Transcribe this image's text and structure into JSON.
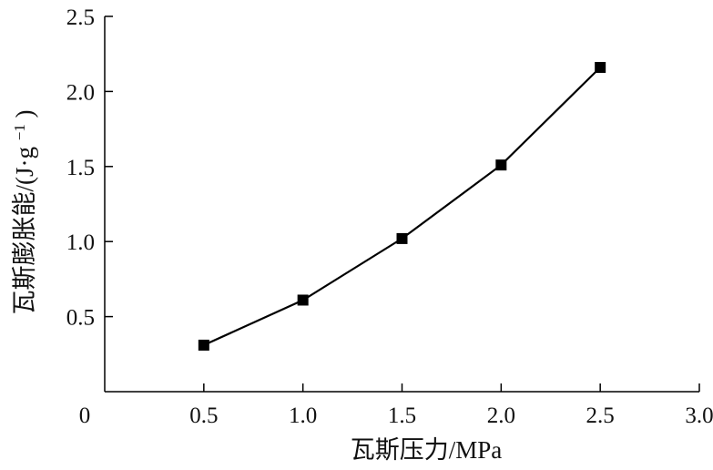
{
  "chart_data": {
    "type": "line",
    "title": "",
    "xlabel": "瓦斯压力/MPa",
    "ylabel": {
      "prefix": "瓦斯膨胀能/(J·g",
      "superscript": "−1",
      "suffix": ")"
    },
    "xlim": [
      0,
      3.0
    ],
    "ylim": [
      0,
      2.5
    ],
    "x_ticks": [
      "0",
      "0.5",
      "1.0",
      "1.5",
      "2.0",
      "2.5",
      "3.0"
    ],
    "y_ticks": [
      "0.5",
      "1.0",
      "1.5",
      "2.0",
      "2.5"
    ],
    "grid": false,
    "legend": "none",
    "series": [
      {
        "marker": "square",
        "color": "#000000",
        "x": [
          0.5,
          1.0,
          1.5,
          2.0,
          2.5
        ],
        "y": [
          0.31,
          0.61,
          1.02,
          1.51,
          2.16
        ]
      }
    ]
  }
}
